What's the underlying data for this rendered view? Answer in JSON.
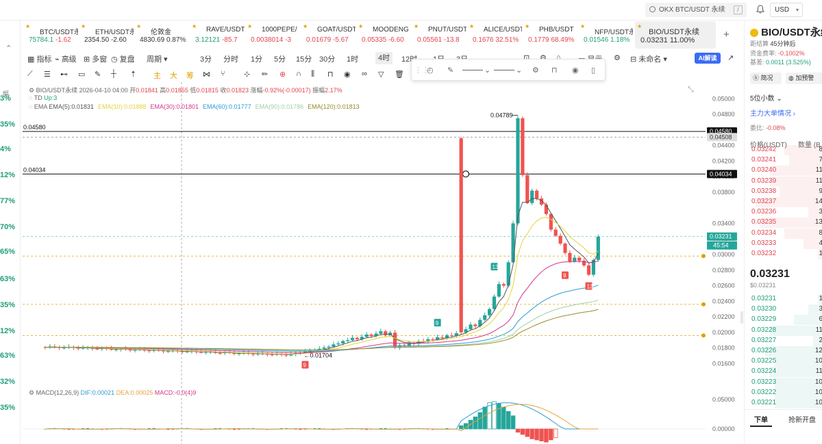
{
  "header": {
    "search_text": "OKX BTC/USDT 永续",
    "search_shortcut": "/",
    "currency": "USD"
  },
  "left_percents": [
    "3%",
    "35%",
    "4%",
    "12%",
    "77%",
    "70%",
    "65%",
    "63%",
    "35%",
    "12%",
    "63%",
    "32%",
    "35%"
  ],
  "tickers": [
    {
      "symbol": "BTC/USDT永",
      "price": "75784.1",
      "change": "-1.62",
      "price_color": "#1f9d7a",
      "change_color": "#e0454f"
    },
    {
      "symbol": "ETH/USDT永",
      "price": "2354.50",
      "change": "-2.60",
      "price_color": "#333333",
      "change_color": "#333333"
    },
    {
      "symbol": "伦敦金",
      "price": "4830.69",
      "change": "0.87%",
      "price_color": "#333333",
      "change_color": "#333333"
    },
    {
      "symbol": "RAVE/USDT",
      "price": "3.12121",
      "change": "-85.7",
      "price_color": "#1f9d7a",
      "change_color": "#e0454f"
    },
    {
      "symbol": "1000PEPE/",
      "price": "0.0038014",
      "change": "-3",
      "price_color": "#e0454f",
      "change_color": "#e0454f"
    },
    {
      "symbol": "GOAT/USDT",
      "price": "0.01679",
      "change": "-5.67",
      "price_color": "#e0454f",
      "change_color": "#e0454f"
    },
    {
      "symbol": "MOODENG",
      "price": "0.05335",
      "change": "-6.60",
      "price_color": "#e0454f",
      "change_color": "#e0454f"
    },
    {
      "symbol": "PNUT/USDT",
      "price": "0.05561",
      "change": "-13.8",
      "price_color": "#e0454f",
      "change_color": "#e0454f"
    },
    {
      "symbol": "ALICE/USDT",
      "price": "0.1676",
      "change": "32.51%",
      "price_color": "#e0454f",
      "change_color": "#e0454f"
    },
    {
      "symbol": "PHB/USDT",
      "price": "0.1779",
      "change": "68.49%",
      "price_color": "#e0454f",
      "change_color": "#e0454f"
    },
    {
      "symbol": "NFP/USDT永",
      "price": "0.01546",
      "change": "1.18%",
      "price_color": "#1f9d7a",
      "change_color": "#1f9d7a"
    },
    {
      "symbol": "BIO/USDT永续",
      "price": "0.03231",
      "change": "11.00%",
      "price_color": "#333333",
      "change_color": "#333333"
    }
  ],
  "toolbar": {
    "indicators": "指标",
    "advanced": "高级",
    "multi_window": "多窗",
    "replay": "复盘",
    "period": "周期",
    "timeframes": [
      "3分",
      "分时",
      "1分",
      "5分",
      "15分",
      "30分",
      "1时",
      "4时",
      "12时",
      "1日",
      "3日",
      "3日"
    ],
    "active_timeframe": "4时",
    "display": "显示",
    "unnamed": "未命名",
    "ai": "AI解读"
  },
  "draw_tools": [
    "主",
    "大",
    "筹"
  ],
  "chart_info": {
    "symbol": "BIO/USDT永续",
    "time": "2026-04-10 04:00",
    "open_label": "开",
    "open": "0.01841",
    "high_label": "高",
    "high": "0.01855",
    "low_label": "低",
    "low": "0.01815",
    "close_label": "收",
    "close": "0.01823",
    "change_label": "涨幅",
    "change": "-0.92%(-0.00017)",
    "amp_label": "振幅",
    "amplitude": "2.17%",
    "td_label": "TD",
    "td_value": "Up:3",
    "ema_label": "EMA",
    "ema": [
      {
        "label": "EMA(5):0.01831",
        "color": "#555555"
      },
      {
        "label": "EMA(10):0.01888",
        "color": "#e6d23a"
      },
      {
        "label": "EMA(30):0.01801",
        "color": "#d6338a"
      },
      {
        "label": "EMA(60):0.01777",
        "color": "#2a9bd6"
      },
      {
        "label": "EMA(90):0.01786",
        "color": "#9fd0a6"
      },
      {
        "label": "EMA(120):0.01813",
        "color": "#9a8a2a"
      }
    ],
    "macd_label": "MACD(12,26,9)",
    "dif": "DIF:0.00021",
    "dea": "DEA:0.00025",
    "macd": "MACD:-0.0(4)9"
  },
  "chart_data": {
    "type": "candlestick",
    "price_axis": [
      "0.05000",
      "0.04800",
      "0.04600",
      "0.04400",
      "0.04200",
      "0.04000",
      "0.03800",
      "0.03400",
      "0.03200",
      "0.03000",
      "0.02800",
      "0.02600",
      "0.02400",
      "0.02200",
      "0.02000",
      "0.01800",
      "0.01600"
    ],
    "ylim": [
      0.0148,
      0.051
    ],
    "macd_axis": [
      "0.05000",
      "0.00000"
    ],
    "horizontal_lines": [
      {
        "value": 0.0458,
        "label": "0.04580"
      },
      {
        "value": 0.04034,
        "label": "0.04034"
      }
    ],
    "dashed_levels": [
      0.04508,
      0.03231,
      0.0298,
      0.0236,
      0.0196
    ],
    "price_tags": {
      "line1": "0.04580",
      "line1b": "0.04508",
      "line2": "0.04034",
      "current": "0.03231",
      "countdown": "45:54"
    },
    "annotations": {
      "high": "0.04789",
      "low": "0.01704",
      "td_marks": [
        "13",
        "9",
        "9",
        "13",
        "9"
      ]
    },
    "candles": [
      {
        "o": 0.0348,
        "h": 0.0362,
        "l": 0.0338,
        "c": 0.0352
      },
      {
        "o": 0.0352,
        "h": 0.0358,
        "l": 0.034,
        "c": 0.0344
      },
      {
        "o": 0.0344,
        "h": 0.035,
        "l": 0.0334,
        "c": 0.0338
      },
      {
        "o": 0.0338,
        "h": 0.0346,
        "l": 0.0332,
        "c": 0.0342
      },
      {
        "o": 0.0342,
        "h": 0.0348,
        "l": 0.0336,
        "c": 0.034
      }
    ],
    "macd_hist_green": [
      0.0006,
      0.001,
      0.0016,
      0.0022,
      0.003,
      0.004,
      0.0048,
      0.005,
      0.0046,
      0.004,
      0.0032,
      0.0024
    ],
    "macd_hist_red": [
      -0.0006,
      -0.001,
      -0.0014,
      -0.0018,
      -0.002,
      -0.0022,
      -0.0024,
      -0.002,
      -0.0016
    ]
  },
  "right_panel": {
    "title": "BIO/USDT永续",
    "funding_label": "距结算",
    "funding_time": "45分钟后",
    "fund_rate_label": "资金费率:",
    "fund_rate": "-0.1002%",
    "premium_label": "基差:",
    "premium": "0.0011 (3.525%)",
    "intro": "简况",
    "add_alert": "加预警",
    "decimals": "5位小数",
    "big_orders": "主力大单情况",
    "ratio_label": "委比:",
    "ratio": "-0.08%",
    "col_price": "价格(USDT)",
    "col_qty": "数量 (B",
    "asks": [
      {
        "p": "0.03242",
        "q": "8"
      },
      {
        "p": "0.03241",
        "q": "7"
      },
      {
        "p": "0.03240",
        "q": "11"
      },
      {
        "p": "0.03239",
        "q": "11"
      },
      {
        "p": "0.03238",
        "q": "9"
      },
      {
        "p": "0.03237",
        "q": "14"
      },
      {
        "p": "0.03236",
        "q": "3"
      },
      {
        "p": "0.03235",
        "q": "13"
      },
      {
        "p": "0.03234",
        "q": "8"
      },
      {
        "p": "0.03233",
        "q": "4"
      },
      {
        "p": "0.03232",
        "q": "1"
      }
    ],
    "last_price": "0.03231",
    "last_price_usd": "$0.03231",
    "bids": [
      {
        "p": "0.03231",
        "q": "1"
      },
      {
        "p": "0.03230",
        "q": "3"
      },
      {
        "p": "0.03229",
        "q": "6"
      },
      {
        "p": "0.03228",
        "q": "11"
      },
      {
        "p": "0.03227",
        "q": "2"
      },
      {
        "p": "0.03226",
        "q": "12"
      },
      {
        "p": "0.03225",
        "q": "10"
      },
      {
        "p": "0.03224",
        "q": "11"
      },
      {
        "p": "0.03223",
        "q": "10"
      },
      {
        "p": "0.03222",
        "q": "10"
      },
      {
        "p": "0.03221",
        "q": "10"
      }
    ],
    "tab_order": "下单",
    "tab_flash": "抢新开盘"
  }
}
